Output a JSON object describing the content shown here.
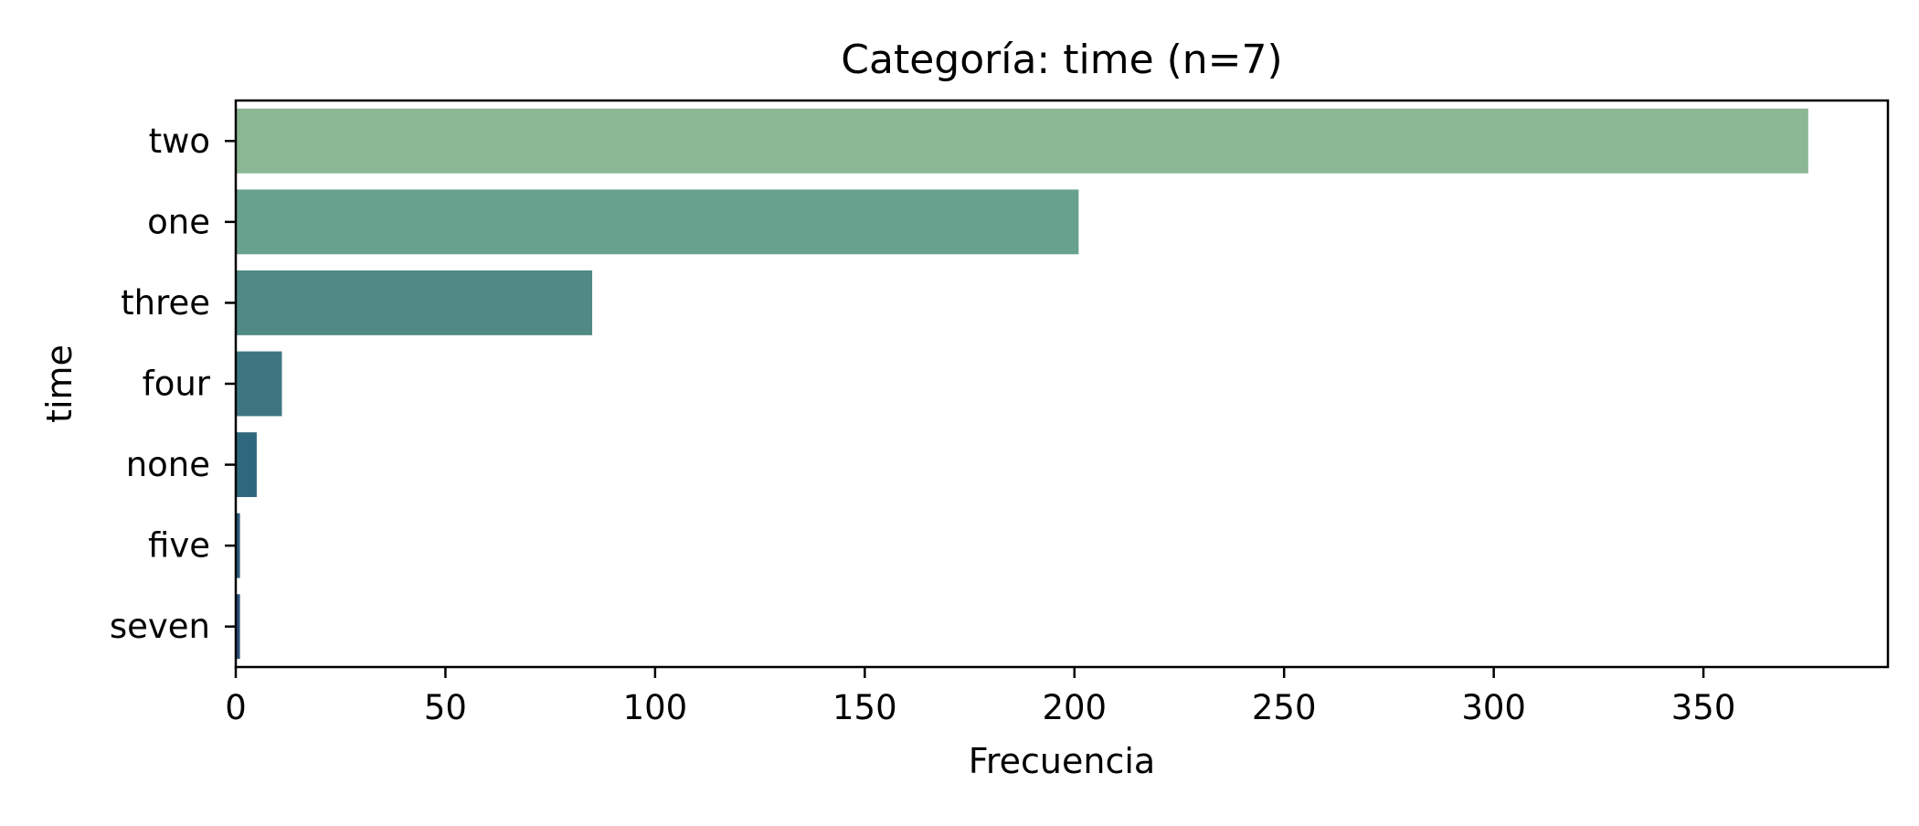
{
  "chart_data": {
    "type": "bar",
    "orientation": "horizontal",
    "title": "Categoría: time (n=7)",
    "xlabel": "Frecuencia",
    "ylabel": "time",
    "categories": [
      "two",
      "one",
      "three",
      "four",
      "none",
      "five",
      "seven"
    ],
    "values": [
      375,
      201,
      85,
      11,
      5,
      1,
      1
    ],
    "xlim": [
      0,
      394
    ],
    "xticks": [
      0,
      50,
      100,
      150,
      200,
      250,
      300,
      350
    ],
    "grid": false,
    "colors": [
      "#8bb794",
      "#69a18f",
      "#508a85",
      "#3d7681",
      "#2f687e",
      "#2a5a7a",
      "#2a4d76"
    ]
  }
}
